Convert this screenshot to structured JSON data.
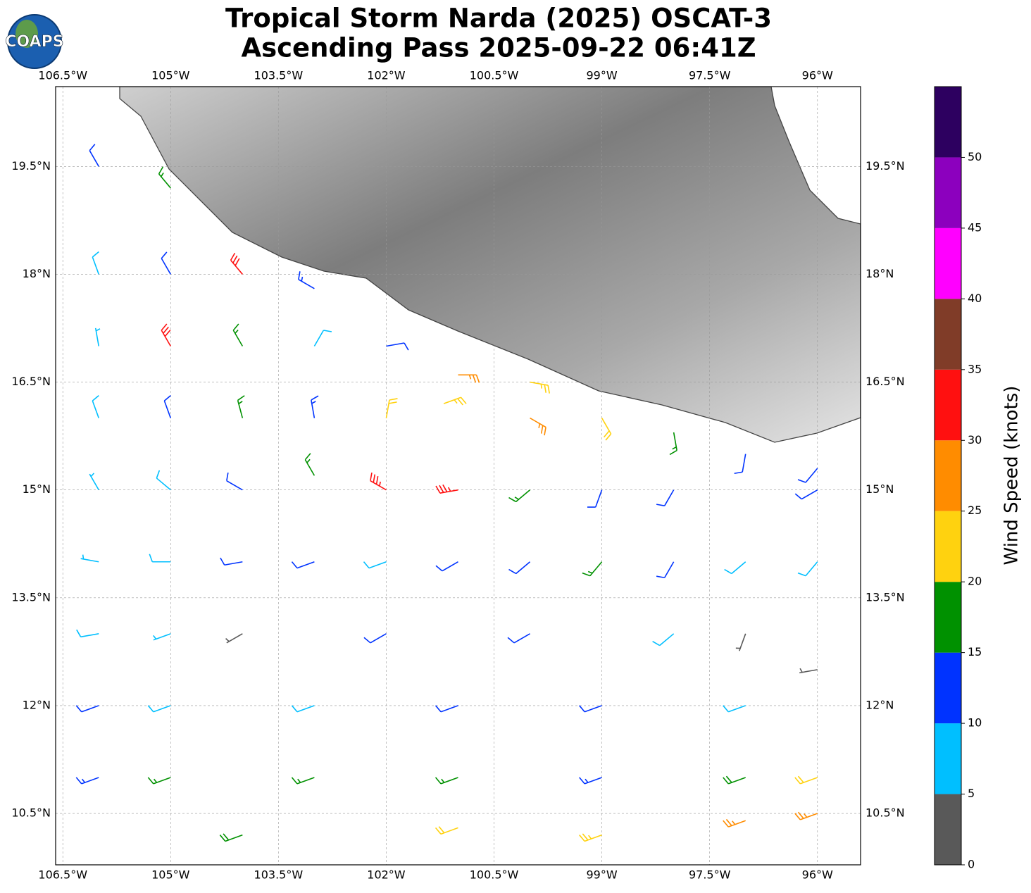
{
  "chart_data": {
    "type": "barbs",
    "title": "Tropical Storm Narda (2025) OSCAT-3",
    "subtitle": "Ascending Pass 2025-09-22 06:41Z",
    "logo": "COAPS",
    "xlim": [
      -106.6,
      -95.4
    ],
    "ylim": [
      9.785,
      20.61
    ],
    "xticks": [
      {
        "value": -106.5,
        "label": "106.5°W"
      },
      {
        "value": -105,
        "label": "105°W"
      },
      {
        "value": -103.5,
        "label": "103.5°W"
      },
      {
        "value": -102,
        "label": "102°W"
      },
      {
        "value": -100.5,
        "label": "100.5°W"
      },
      {
        "value": -99,
        "label": "99°W"
      },
      {
        "value": -97.5,
        "label": "97.5°W"
      },
      {
        "value": -96,
        "label": "96°W"
      }
    ],
    "yticks": [
      {
        "value": 10.5,
        "label": "10.5°N"
      },
      {
        "value": 12,
        "label": "12°N"
      },
      {
        "value": 13.5,
        "label": "13.5°N"
      },
      {
        "value": 15,
        "label": "15°N"
      },
      {
        "value": 16.5,
        "label": "16.5°N"
      },
      {
        "value": 18,
        "label": "18°N"
      },
      {
        "value": 19.5,
        "label": "19.5°N"
      }
    ],
    "grid": true,
    "colorbar": {
      "label": "Wind Speed (knots)",
      "lim": [
        0,
        55
      ],
      "bounds": [
        0,
        5,
        10,
        15,
        20,
        25,
        30,
        35,
        40,
        45,
        50,
        55
      ],
      "colors": [
        "#595959",
        "#00bfff",
        "#0033ff",
        "#009100",
        "#ffd20f",
        "#ff8c00",
        "#ff1010",
        "#803c28",
        "#ff00ff",
        "#8c00be",
        "#2d0060"
      ],
      "ticks": [
        0,
        5,
        10,
        15,
        20,
        25,
        30,
        35,
        40,
        45,
        50
      ]
    },
    "barbs": {
      "lon": [
        -106,
        -105,
        -106,
        -105,
        -104,
        -103,
        -106,
        -105,
        -104,
        -103,
        -102,
        -101,
        -100,
        -106,
        -105,
        -104,
        -103,
        -102,
        -101.2,
        -100,
        -99,
        -98,
        -97,
        -96,
        -106,
        -105,
        -104,
        -103,
        -102,
        -101,
        -100,
        -99,
        -98,
        -96,
        -106,
        -105,
        -104,
        -103,
        -102,
        -101,
        -100,
        -99,
        -98,
        -97,
        -96,
        -106,
        -105,
        -104,
        -102,
        -100,
        -98,
        -97,
        -96,
        -106,
        -105,
        -103,
        -101,
        -99,
        -97,
        -106,
        -105,
        -103,
        -101,
        -99,
        -97,
        -96,
        -104,
        -101,
        -99,
        -97,
        -96
      ],
      "lat": [
        19.5,
        19.2,
        18,
        18,
        18,
        17.8,
        17,
        17,
        17,
        17,
        17,
        16.6,
        16.5,
        16,
        16,
        16,
        16,
        16,
        16.2,
        16,
        16,
        15.8,
        15.5,
        15.3,
        15,
        15,
        15,
        15.2,
        15,
        15,
        15,
        15,
        15,
        15,
        14,
        14,
        14,
        14,
        14,
        14,
        14,
        14,
        14,
        14,
        14,
        13,
        13,
        13,
        13,
        13,
        13,
        13,
        12.5,
        12,
        12,
        12,
        12,
        12,
        12,
        11,
        11,
        11,
        11,
        11,
        11,
        11,
        10.2,
        10.3,
        10.2,
        10.4,
        10.5
      ],
      "speed": [
        12,
        17,
        8,
        12,
        30,
        14,
        7,
        32,
        17,
        8,
        10,
        27,
        23,
        8,
        10,
        15,
        13,
        22,
        24,
        26,
        22,
        15,
        11,
        10,
        7,
        8,
        10,
        17,
        34,
        33,
        15,
        12,
        12,
        11,
        7,
        8,
        11,
        12,
        9,
        12,
        11,
        15,
        12,
        9,
        8,
        9,
        6,
        4,
        12,
        11,
        8,
        3,
        3,
        12,
        9,
        9,
        12,
        10,
        8,
        14,
        17,
        16,
        15,
        14,
        18,
        21,
        18,
        21,
        23,
        27,
        25
      ],
      "direction": [
        330,
        320,
        340,
        330,
        320,
        300,
        350,
        330,
        330,
        30,
        80,
        90,
        100,
        340,
        340,
        345,
        350,
        10,
        70,
        120,
        150,
        170,
        190,
        220,
        330,
        310,
        300,
        330,
        300,
        260,
        230,
        200,
        210,
        240,
        280,
        270,
        260,
        250,
        250,
        240,
        230,
        220,
        210,
        230,
        220,
        260,
        250,
        240,
        240,
        240,
        230,
        200,
        260,
        250,
        250,
        250,
        250,
        250,
        250,
        250,
        250,
        250,
        250,
        250,
        250,
        250,
        250,
        250,
        250,
        250,
        250
      ]
    }
  }
}
